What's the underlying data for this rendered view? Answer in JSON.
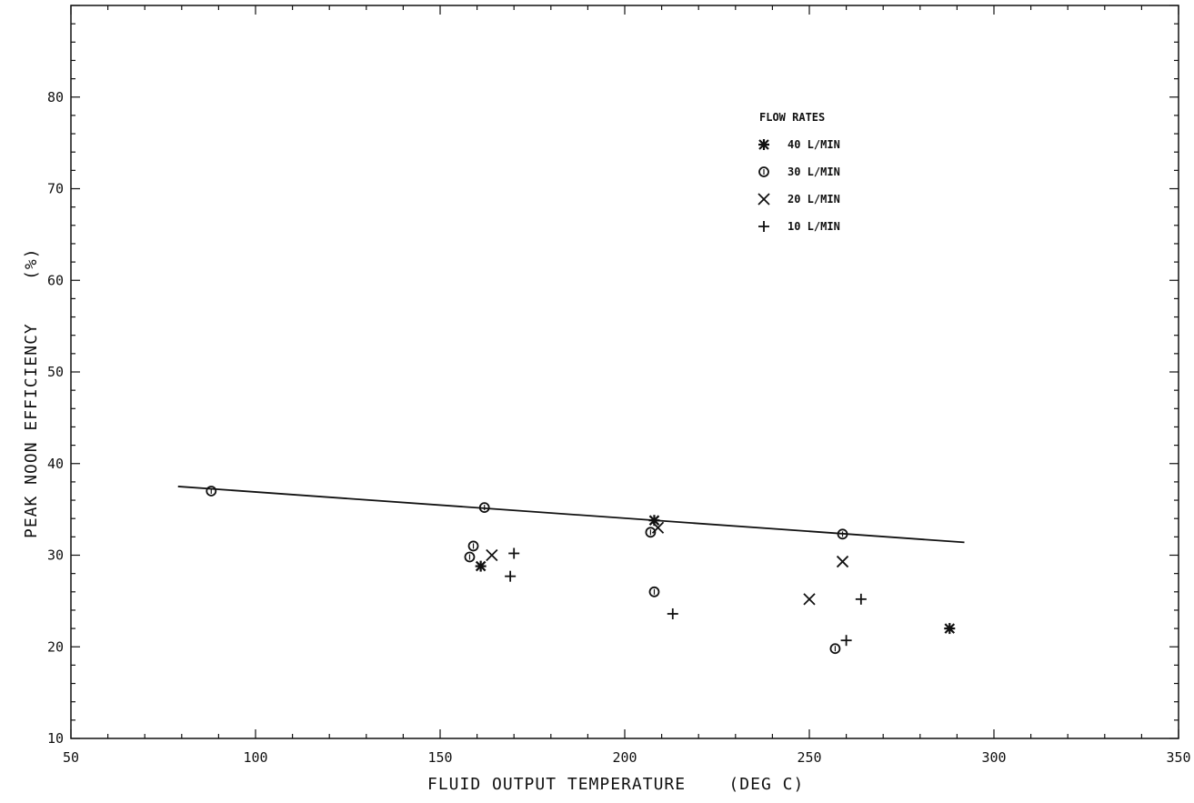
{
  "chart_data": {
    "type": "scatter",
    "title": "",
    "xlabel": "FLUID OUTPUT TEMPERATURE    (DEG C)",
    "ylabel": "PEAK NOON EFFICIENCY    (%)",
    "xlim": [
      50,
      350
    ],
    "ylim": [
      10,
      90
    ],
    "xticks": [
      "50",
      "100",
      "150",
      "200",
      "250",
      "300",
      "350"
    ],
    "yticks": [
      "10",
      "20",
      "30",
      "40",
      "50",
      "60",
      "70",
      "80"
    ],
    "grid": false,
    "legend_title": "FLOW RATES",
    "legend_position": "top-right",
    "series": [
      {
        "name": "40 L/MIN",
        "marker": "asterisk",
        "points": [
          [
            161,
            28.8
          ],
          [
            208,
            33.8
          ],
          [
            288,
            22.0
          ]
        ]
      },
      {
        "name": "30 L/MIN",
        "marker": "circle",
        "points": [
          [
            88,
            37.0
          ],
          [
            162,
            35.2
          ],
          [
            158,
            29.8
          ],
          [
            159,
            31.0
          ],
          [
            207,
            32.5
          ],
          [
            208,
            26.0
          ],
          [
            257,
            19.8
          ],
          [
            259,
            32.3
          ]
        ]
      },
      {
        "name": "20 L/MIN",
        "marker": "x",
        "points": [
          [
            164,
            30.0
          ],
          [
            209,
            33.0
          ],
          [
            250,
            25.2
          ],
          [
            259,
            29.3
          ]
        ]
      },
      {
        "name": "10 L/MIN",
        "marker": "plus",
        "points": [
          [
            169,
            27.7
          ],
          [
            170,
            30.2
          ],
          [
            213,
            23.6
          ],
          [
            260,
            20.7
          ],
          [
            264,
            25.2
          ]
        ]
      }
    ],
    "fit_line": {
      "x": [
        79,
        292
      ],
      "y": [
        37.5,
        31.4
      ]
    }
  }
}
